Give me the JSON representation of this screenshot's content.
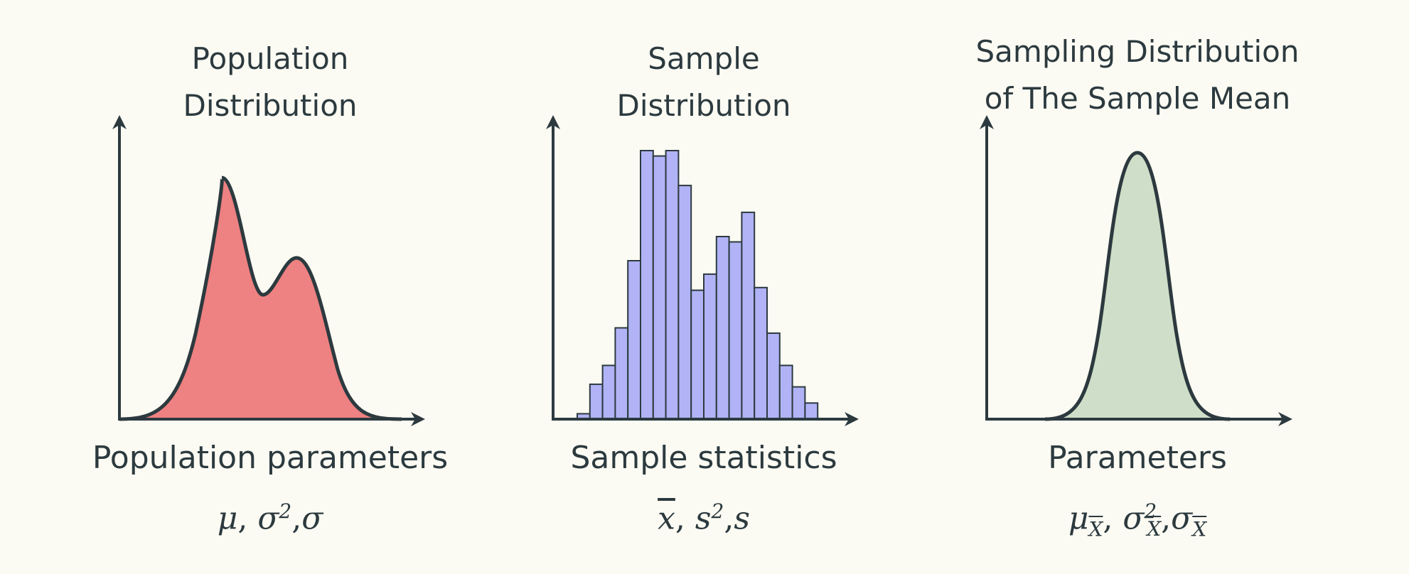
{
  "panels": {
    "population": {
      "title_line1": "Population",
      "title_line2": "Distribution",
      "caption": "Population parameters",
      "formula": {
        "a": "μ",
        "sep1": ", ",
        "b": "σ",
        "b_sup": "2",
        "sep2": ",",
        "c": "σ"
      },
      "fill_color": "#ee8181"
    },
    "sample": {
      "title_line1": "Sample",
      "title_line2": "Distribution",
      "caption": "Sample statistics",
      "formula": {
        "a": "x",
        "sep1": ", ",
        "b": "s",
        "b_sup": "2",
        "sep2": ",",
        "c": "s"
      },
      "fill_color": "#b1b3f6"
    },
    "sampling": {
      "title_line1": "Sampling Distribution",
      "title_line2": "of The Sample Mean",
      "caption": "Parameters",
      "formula": {
        "a": "μ",
        "a_sub": "X",
        "sep1": ", ",
        "b": "σ",
        "b_sup": "2",
        "b_sub": "X",
        "sep2": ",",
        "c": "σ",
        "c_sub": "X"
      },
      "fill_color": "#cfdec8"
    }
  },
  "colors": {
    "axis": "#2c3a3f",
    "background": "#fcfbf3"
  },
  "chart_data": {
    "type": "bar",
    "values": [
      0.02,
      0.13,
      0.2,
      0.34,
      0.59,
      1.0,
      0.98,
      1.0,
      0.87,
      0.48,
      0.54,
      0.68,
      0.66,
      0.77,
      0.49,
      0.32,
      0.2,
      0.12,
      0.06
    ]
  }
}
